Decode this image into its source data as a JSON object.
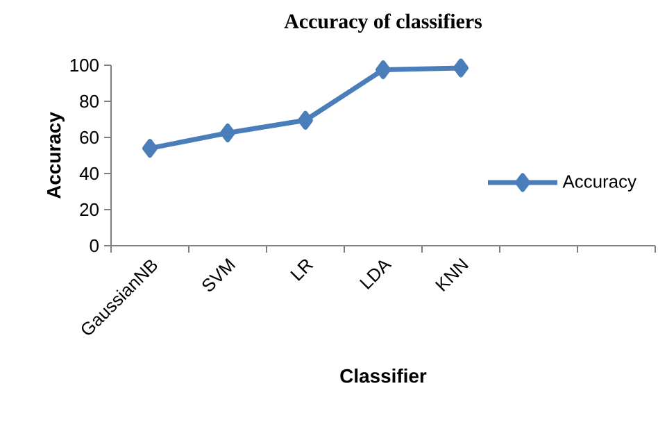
{
  "chart_data": {
    "type": "line",
    "title": "Accuracy of classifiers",
    "xlabel": "Classifier",
    "ylabel": "Accuracy",
    "categories": [
      "GaussianNB",
      "SVM",
      "LR",
      "LDA",
      "KNN",
      null,
      null
    ],
    "series": [
      {
        "name": "Accuracy",
        "color": "#4a7ebb",
        "values": [
          54,
          62.5,
          69.5,
          97.5,
          98.5,
          null,
          null
        ]
      }
    ],
    "ylim": [
      0,
      100
    ],
    "yticks": [
      0,
      20,
      40,
      60,
      80,
      100
    ],
    "legend": "right",
    "marker": "diamond",
    "line_style": "solid",
    "grid": false
  }
}
